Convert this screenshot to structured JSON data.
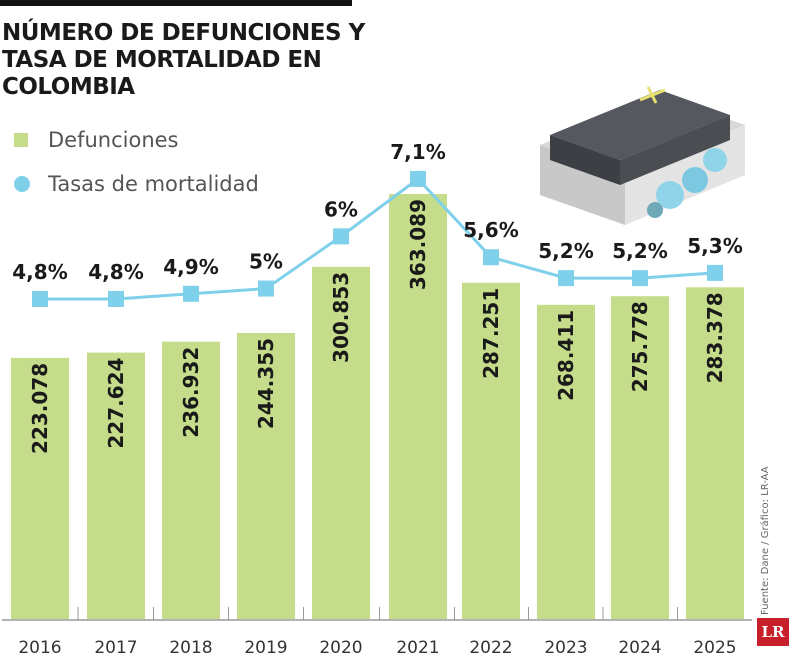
{
  "title": "NÚMERO DE DEFUNCIONES Y TASA DE MORTALIDAD EN COLOMBIA",
  "source": "Fuente: Dane / Gráfico: LR-AA",
  "logo": "LR",
  "colors": {
    "bars": "#c5dd8a",
    "line": "#7fd0ea",
    "text": "#1a1a1a"
  },
  "chart_data": {
    "type": "bar",
    "title": "NÚMERO DE DEFUNCIONES Y TASA DE MORTALIDAD EN COLOMBIA",
    "categories": [
      "2016",
      "2017",
      "2018",
      "2019",
      "2020",
      "2021",
      "2022",
      "2023",
      "2024",
      "2025"
    ],
    "legend_placement": "top-left",
    "grid": false,
    "series": [
      {
        "name": "Defunciones",
        "type": "bar",
        "values": [
          223078,
          227624,
          236932,
          244355,
          300853,
          363089,
          287251,
          268411,
          275778,
          283378
        ],
        "labels": [
          "223.078",
          "227.624",
          "236.932",
          "244.355",
          "300.853",
          "363.089",
          "287.251",
          "268.411",
          "275.778",
          "283.378"
        ]
      },
      {
        "name": "Tasas de mortalidad",
        "type": "line",
        "unit": "%",
        "values": [
          4.8,
          4.8,
          4.9,
          5,
          6,
          7.1,
          5.6,
          5.2,
          5.2,
          5.3
        ],
        "labels": [
          "4,8%",
          "4,8%",
          "4,9%",
          "5%",
          "6%",
          "7,1%",
          "5,6%",
          "5,2%",
          "5,2%",
          "5,3%"
        ]
      }
    ]
  }
}
